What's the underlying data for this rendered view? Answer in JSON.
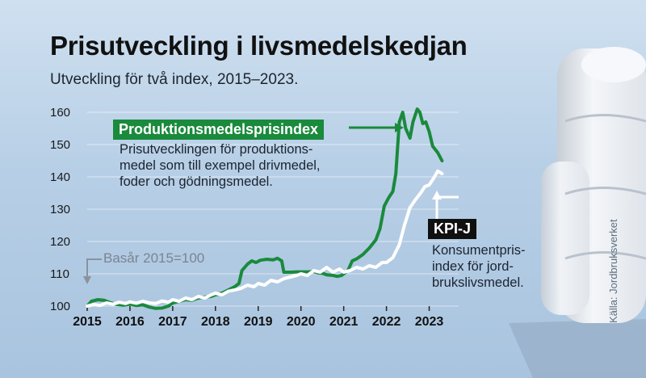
{
  "title": "Prisutveckling i livsmedelskedjan",
  "subtitle": "Utveckling för två index, 2015–2023.",
  "credit": "Källa: Jordbruksverket",
  "annotations": {
    "prod_label": "Produktionsmedelsprisindex",
    "prod_note": "Prisutvecklingen för produktions-\nmedel som till exempel drivmedel,\nfoder och gödningsmedel.",
    "kpi_label": "KPI-J",
    "kpi_note": "Konsumentpris-\nindex för jord-\nbrukslivsmedel.",
    "base_note": "Basår 2015=100"
  },
  "colors": {
    "prod": "#1a8a3c",
    "kpi": "#ffffff",
    "base_arrow": "#8a929c"
  },
  "chart_data": {
    "type": "line",
    "title": "Prisutveckling i livsmedelskedjan",
    "xlabel": "",
    "ylabel": "",
    "xlim": [
      2015,
      2023.5
    ],
    "ylim": [
      100,
      160
    ],
    "yticks": [
      100,
      110,
      120,
      130,
      140,
      150,
      160
    ],
    "xticks": [
      2015,
      2016,
      2017,
      2018,
      2019,
      2020,
      2021,
      2022,
      2023
    ],
    "grid": true,
    "series": [
      {
        "name": "Produktionsmedelsprisindex",
        "color": "#1a8a3c",
        "points": [
          [
            2015.0,
            100.0
          ],
          [
            2015.1,
            101.5
          ],
          [
            2015.25,
            102.0
          ],
          [
            2015.4,
            101.8
          ],
          [
            2015.55,
            101.0
          ],
          [
            2015.7,
            100.5
          ],
          [
            2015.85,
            100.3
          ],
          [
            2016.0,
            100.6
          ],
          [
            2016.15,
            100.2
          ],
          [
            2016.3,
            100.4
          ],
          [
            2016.45,
            99.7
          ],
          [
            2016.6,
            99.3
          ],
          [
            2016.75,
            99.4
          ],
          [
            2016.9,
            100.0
          ],
          [
            2017.0,
            101.0
          ],
          [
            2017.15,
            101.5
          ],
          [
            2017.3,
            102.0
          ],
          [
            2017.45,
            101.8
          ],
          [
            2017.6,
            102.5
          ],
          [
            2017.75,
            102.8
          ],
          [
            2017.9,
            103.0
          ],
          [
            2018.0,
            103.5
          ],
          [
            2018.15,
            104.0
          ],
          [
            2018.3,
            105.0
          ],
          [
            2018.45,
            106.0
          ],
          [
            2018.55,
            107.0
          ],
          [
            2018.62,
            111.0
          ],
          [
            2018.75,
            113.0
          ],
          [
            2018.85,
            114.0
          ],
          [
            2018.95,
            113.5
          ],
          [
            2019.05,
            114.2
          ],
          [
            2019.2,
            114.5
          ],
          [
            2019.35,
            114.3
          ],
          [
            2019.45,
            114.8
          ],
          [
            2019.55,
            114.0
          ],
          [
            2019.6,
            110.5
          ],
          [
            2019.75,
            110.5
          ],
          [
            2019.9,
            110.6
          ],
          [
            2020.0,
            110.6
          ],
          [
            2020.15,
            110.6
          ],
          [
            2020.3,
            110.7
          ],
          [
            2020.4,
            110.3
          ],
          [
            2020.5,
            110.2
          ],
          [
            2020.6,
            109.7
          ],
          [
            2020.75,
            109.5
          ],
          [
            2020.85,
            109.2
          ],
          [
            2020.95,
            109.5
          ],
          [
            2021.0,
            110.0
          ],
          [
            2021.1,
            111.0
          ],
          [
            2021.2,
            114.0
          ],
          [
            2021.3,
            114.6
          ],
          [
            2021.45,
            116.0
          ],
          [
            2021.6,
            118.0
          ],
          [
            2021.75,
            120.5
          ],
          [
            2021.85,
            124.0
          ],
          [
            2021.95,
            131.0
          ],
          [
            2022.05,
            133.5
          ],
          [
            2022.15,
            135.5
          ],
          [
            2022.22,
            141.0
          ],
          [
            2022.3,
            157.0
          ],
          [
            2022.38,
            160.0
          ],
          [
            2022.45,
            155.0
          ],
          [
            2022.55,
            152.0
          ],
          [
            2022.62,
            157.0
          ],
          [
            2022.72,
            161.0
          ],
          [
            2022.78,
            160.0
          ],
          [
            2022.85,
            156.5
          ],
          [
            2022.92,
            157.0
          ],
          [
            2023.0,
            154.0
          ],
          [
            2023.08,
            149.5
          ],
          [
            2023.2,
            147.5
          ],
          [
            2023.3,
            145.0
          ]
        ]
      },
      {
        "name": "KPI-J",
        "color": "#ffffff",
        "points": [
          [
            2015.0,
            100.0
          ],
          [
            2015.15,
            100.5
          ],
          [
            2015.3,
            100.2
          ],
          [
            2015.45,
            101.0
          ],
          [
            2015.6,
            100.6
          ],
          [
            2015.75,
            101.2
          ],
          [
            2015.9,
            100.8
          ],
          [
            2016.0,
            101.3
          ],
          [
            2016.15,
            100.9
          ],
          [
            2016.3,
            101.5
          ],
          [
            2016.45,
            101.0
          ],
          [
            2016.6,
            100.8
          ],
          [
            2016.75,
            101.6
          ],
          [
            2016.9,
            101.2
          ],
          [
            2017.0,
            102.0
          ],
          [
            2017.15,
            101.5
          ],
          [
            2017.3,
            102.5
          ],
          [
            2017.45,
            102.0
          ],
          [
            2017.6,
            103.0
          ],
          [
            2017.75,
            102.5
          ],
          [
            2017.9,
            103.5
          ],
          [
            2018.0,
            104.0
          ],
          [
            2018.15,
            103.5
          ],
          [
            2018.3,
            104.6
          ],
          [
            2018.45,
            105.0
          ],
          [
            2018.6,
            105.5
          ],
          [
            2018.75,
            106.5
          ],
          [
            2018.9,
            106.0
          ],
          [
            2019.0,
            107.0
          ],
          [
            2019.15,
            106.5
          ],
          [
            2019.3,
            108.0
          ],
          [
            2019.45,
            107.5
          ],
          [
            2019.6,
            108.5
          ],
          [
            2019.75,
            109.0
          ],
          [
            2019.9,
            109.5
          ],
          [
            2020.0,
            110.0
          ],
          [
            2020.15,
            109.5
          ],
          [
            2020.3,
            111.0
          ],
          [
            2020.45,
            110.5
          ],
          [
            2020.6,
            112.0
          ],
          [
            2020.75,
            110.5
          ],
          [
            2020.9,
            111.5
          ],
          [
            2021.0,
            110.5
          ],
          [
            2021.15,
            111.0
          ],
          [
            2021.3,
            112.0
          ],
          [
            2021.45,
            111.5
          ],
          [
            2021.6,
            112.5
          ],
          [
            2021.75,
            112.0
          ],
          [
            2021.9,
            113.5
          ],
          [
            2022.0,
            113.5
          ],
          [
            2022.15,
            115.0
          ],
          [
            2022.3,
            119.0
          ],
          [
            2022.42,
            125.0
          ],
          [
            2022.55,
            130.5
          ],
          [
            2022.68,
            133.0
          ],
          [
            2022.8,
            135.0
          ],
          [
            2022.9,
            137.0
          ],
          [
            2023.0,
            137.5
          ],
          [
            2023.1,
            139.5
          ],
          [
            2023.2,
            141.8
          ],
          [
            2023.3,
            141.0
          ]
        ]
      }
    ]
  }
}
